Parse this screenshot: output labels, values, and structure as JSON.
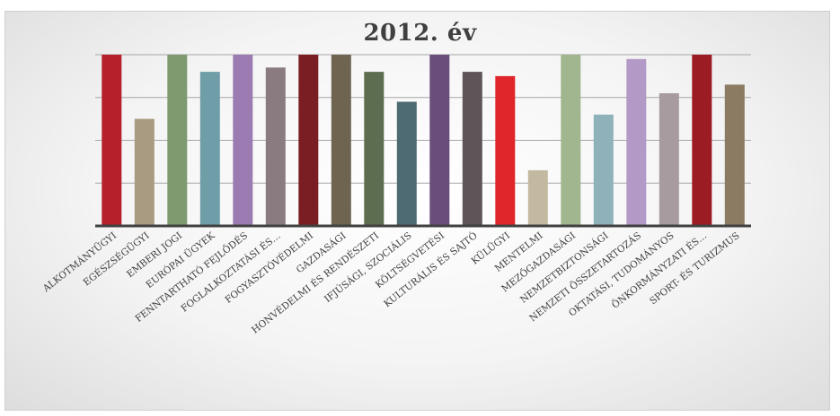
{
  "chart_data": {
    "type": "bar",
    "title": "2012. év",
    "xlabel": "",
    "ylabel": "",
    "ylim": [
      0,
      4
    ],
    "grid": true,
    "categories": [
      "ALKOTMÁNYÜGYI",
      "EGÉSZSÉGÜGYI",
      "EMBERI JOGI",
      "EURÓPAI ÜGYEK",
      "FENNTARTHATÓ FEJLŐDÉS",
      "FOGLALKOZTATÁSI ÉS…",
      "FOGYASZTÓVÉDELMI",
      "GAZDASÁGI",
      "HONVÉDELMI ÉS RENDÉSZETI",
      "IFJÚSÁGI, SZOCIÁLIS",
      "KÖLTSÉGVETÉSI",
      "KULTURÁLIS ÉS SAJTÓ",
      "KÜLÜGYI",
      "MENTELMI",
      "MEZŐGAZDASÁGI",
      "NEMZETBIZTONSÁGI",
      "NEMZETI ÖSSZETARTOZÁS",
      "OKTATÁSI, TUDOMÁNYOS",
      "ÖNKORMÁNYZATI ÉS…",
      "SPORT- ÉS TURIZMUS"
    ],
    "values": [
      4.0,
      2.5,
      4.0,
      3.6,
      4.0,
      3.7,
      4.0,
      4.0,
      3.6,
      2.9,
      4.0,
      3.6,
      3.5,
      1.3,
      4.0,
      2.6,
      3.9,
      3.1,
      4.0,
      3.3
    ],
    "colors": [
      "#b5202a",
      "#a99a82",
      "#7f9a6e",
      "#6f9ea8",
      "#9b7bb1",
      "#8a7b80",
      "#7a1e24",
      "#6e6450",
      "#5d6d4f",
      "#4e6a73",
      "#6a4d7a",
      "#5d5558",
      "#e0262a",
      "#c3b9a0",
      "#a1b68e",
      "#8fb1b9",
      "#b39ac6",
      "#a79ba0",
      "#9b1c22",
      "#8b7b62"
    ]
  }
}
